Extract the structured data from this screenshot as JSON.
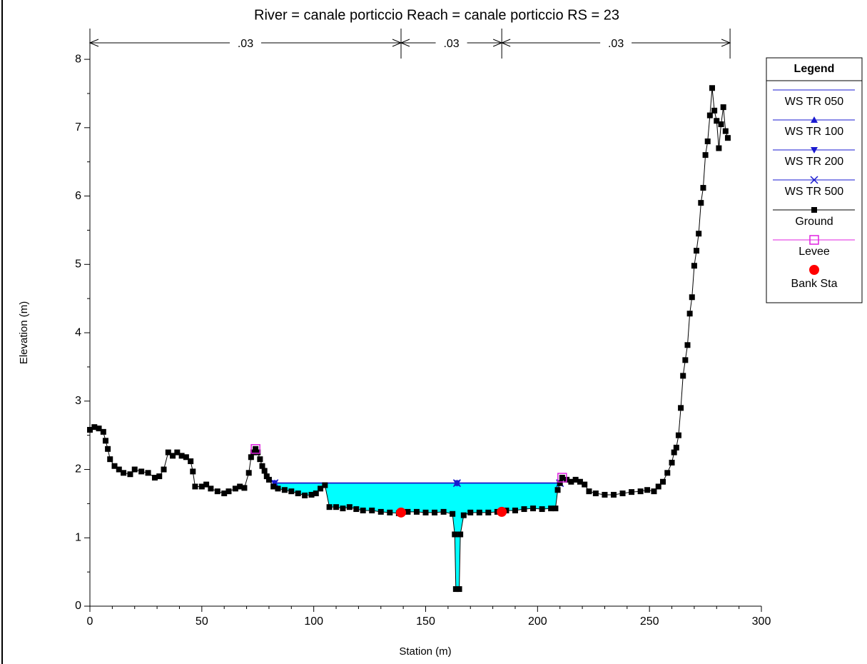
{
  "chart_data": {
    "type": "cross_section",
    "title": "River = canale porticcio   Reach = canale porticcio      RS = 23",
    "xlabel": "Station (m)",
    "ylabel": "Elevation (m)",
    "xlim": [
      0,
      300
    ],
    "ylim": [
      0,
      8.45
    ],
    "xticks": [
      0,
      50,
      100,
      150,
      200,
      250,
      300
    ],
    "yticks": [
      0,
      1,
      2,
      3,
      4,
      5,
      6,
      7,
      8
    ],
    "roughness": {
      "stations": [
        0,
        139,
        184,
        286
      ],
      "labels": [
        ".03",
        ".03",
        ".03"
      ]
    },
    "legend_title": "Legend",
    "water_fill": "#00ffff",
    "series": [
      {
        "name": "WS TR 050",
        "color": "#1a1ad0",
        "marker": "none",
        "line": true,
        "x": [
          82.5,
          210
        ],
        "values": [
          1.8,
          1.8
        ]
      },
      {
        "name": "WS TR 100",
        "color": "#1a1ad0",
        "marker": "triangle-up",
        "line": true,
        "x": [
          82.5,
          164,
          210
        ],
        "values": [
          1.8,
          1.8,
          1.8
        ]
      },
      {
        "name": "WS TR 200",
        "color": "#1a1ad0",
        "marker": "triangle-down",
        "line": true,
        "x": [
          82.5,
          164,
          210
        ],
        "values": [
          1.8,
          1.8,
          1.8
        ]
      },
      {
        "name": "WS TR 500",
        "color": "#1a1ad0",
        "marker": "x",
        "line": true,
        "x": [
          82.5,
          164,
          210
        ],
        "values": [
          1.8,
          1.8,
          1.8
        ]
      },
      {
        "name": "Ground",
        "color": "#000000",
        "marker": "square",
        "line": true,
        "x": [
          0,
          2,
          4,
          6,
          7,
          8,
          9,
          11,
          13,
          15,
          18,
          20,
          23,
          26,
          29,
          31,
          33,
          35,
          37,
          39,
          41,
          43,
          45,
          46,
          47,
          50,
          52,
          54,
          57,
          60,
          62,
          65,
          67,
          69,
          71,
          72,
          73,
          74,
          75,
          76,
          77,
          78,
          79,
          80,
          82,
          84,
          87,
          90,
          93,
          96,
          99,
          101,
          103,
          105,
          107,
          110,
          113,
          116,
          119,
          122,
          126,
          130,
          134,
          138,
          142,
          146,
          150,
          154,
          158,
          162,
          163,
          163.5,
          165,
          165.5,
          167,
          170,
          174,
          178,
          182,
          186,
          190,
          194,
          198,
          202,
          206,
          208,
          209,
          210,
          211,
          213,
          215,
          217,
          219,
          221,
          223,
          226,
          230,
          234,
          238,
          242,
          246,
          249,
          252,
          254,
          256,
          258,
          260,
          261,
          262,
          263,
          264,
          265,
          266,
          267,
          268,
          269,
          270,
          271,
          272,
          273,
          274,
          275,
          276,
          277,
          278,
          279,
          280,
          281,
          282,
          283,
          284,
          285
        ],
        "values": [
          2.58,
          2.62,
          2.6,
          2.55,
          2.42,
          2.3,
          2.15,
          2.05,
          2.0,
          1.95,
          1.93,
          2.0,
          1.97,
          1.95,
          1.88,
          1.9,
          2.0,
          2.25,
          2.2,
          2.25,
          2.2,
          2.18,
          2.12,
          1.97,
          1.75,
          1.75,
          1.78,
          1.72,
          1.68,
          1.65,
          1.68,
          1.72,
          1.75,
          1.73,
          1.95,
          2.18,
          2.25,
          2.3,
          2.25,
          2.15,
          2.05,
          1.98,
          1.9,
          1.85,
          1.75,
          1.72,
          1.7,
          1.68,
          1.65,
          1.62,
          1.63,
          1.65,
          1.72,
          1.77,
          1.45,
          1.45,
          1.43,
          1.45,
          1.42,
          1.4,
          1.4,
          1.38,
          1.37,
          1.36,
          1.38,
          1.38,
          1.37,
          1.37,
          1.38,
          1.35,
          1.05,
          0.25,
          0.25,
          1.05,
          1.33,
          1.37,
          1.37,
          1.37,
          1.38,
          1.4,
          1.4,
          1.42,
          1.43,
          1.42,
          1.43,
          1.43,
          1.7,
          1.8,
          1.88,
          1.85,
          1.82,
          1.85,
          1.82,
          1.78,
          1.68,
          1.65,
          1.63,
          1.63,
          1.65,
          1.67,
          1.68,
          1.7,
          1.68,
          1.75,
          1.82,
          1.95,
          2.1,
          2.25,
          2.32,
          2.5,
          2.9,
          3.37,
          3.6,
          3.82,
          4.28,
          4.52,
          4.98,
          5.2,
          5.45,
          5.9,
          6.12,
          6.6,
          6.8,
          7.18,
          7.58,
          7.25,
          7.1,
          6.7,
          7.05,
          7.3,
          6.95,
          6.85
        ]
      },
      {
        "name": "Levee",
        "color": "#e020e0",
        "marker": "square-open",
        "line": false,
        "x": [
          74,
          211
        ],
        "values": [
          2.3,
          1.88
        ]
      },
      {
        "name": "Bank Sta",
        "color": "#ff0000",
        "marker": "circle",
        "line": false,
        "x": [
          139,
          184
        ],
        "values": [
          1.37,
          1.38
        ]
      }
    ]
  }
}
